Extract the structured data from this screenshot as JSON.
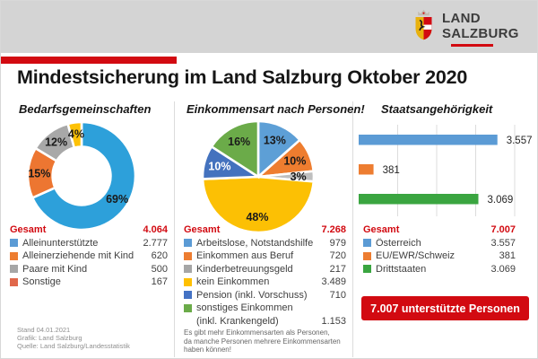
{
  "page": {
    "title": "Mindestsicherung im Land Salzburg Oktober 2020"
  },
  "header": {
    "logo_line1": "LAND",
    "logo_line2": "SALZBURG"
  },
  "theme": {
    "accent_red": "#d20a11",
    "header_bg": "#d4d4d4",
    "divider": "#dcdcdc"
  },
  "columns": [
    {
      "heading": "Bedarfsgemeinschaften",
      "legend": {
        "total_label": "Gesamt",
        "total_value": "4.064",
        "rows": [
          {
            "color": "#5b9bd5",
            "label": "Alleinunterstützte",
            "value": "2.777"
          },
          {
            "color": "#ed7d31",
            "label": "Alleinerziehende mit Kind",
            "value": "620"
          },
          {
            "color": "#a6a6a6",
            "label": "Paare mit Kind",
            "value": "500"
          },
          {
            "color": "#e0684b",
            "label": "Sonstige",
            "value": "167"
          }
        ]
      }
    },
    {
      "heading": "Einkommensart nach Personen!",
      "legend": {
        "total_label": "Gesamt",
        "total_value": "7.268",
        "rows": [
          {
            "color": "#5b9bd5",
            "label": "Arbeitslose, Notstandshilfe",
            "value": "979"
          },
          {
            "color": "#ed7d31",
            "label": "Einkommen aus Beruf",
            "value": "720"
          },
          {
            "color": "#a6a6a6",
            "label": "Kinderbetreuungsgeld",
            "value": "217"
          },
          {
            "color": "#ffc000",
            "label": "kein Einkommen",
            "value": "3.489"
          },
          {
            "color": "#4472c4",
            "label": "Pension (inkl. Vorschuss)",
            "value": "710"
          },
          {
            "color": "#6bab49",
            "label": "sonstiges Einkommen",
            "label2": "(inkl. Krankengeld)",
            "value": "1.153"
          }
        ]
      },
      "footnote": [
        "Es gibt mehr Einkommensarten als Personen,",
        "da manche Personen mehrere Einkommensarten",
        "haben können!"
      ]
    },
    {
      "heading": "Staatsangehörigkeit",
      "legend": {
        "total_label": "Gesamt",
        "total_value": "7.007",
        "rows": [
          {
            "color": "#5b9bd5",
            "label": "Österreich",
            "value": "3.557"
          },
          {
            "color": "#ed7d31",
            "label": "EU/EWR/Schweiz",
            "value": "381"
          },
          {
            "color": "#3aa540",
            "label": "Drittstaaten",
            "value": "3.069"
          }
        ]
      },
      "badge": "7.007 unterstützte Personen"
    }
  ],
  "chart_data": [
    {
      "type": "pie",
      "subtype": "donut",
      "title": "Bedarfsgemeinschaften",
      "labels": [
        "Alleinunterstützte",
        "Alleinerziehende mit Kind",
        "Paare mit Kind",
        "Sonstige"
      ],
      "values": [
        2777,
        620,
        500,
        167
      ],
      "percent_labels": [
        "69%",
        "15%",
        "12%",
        "4%"
      ],
      "colors": [
        "#2da0da",
        "#ed7631",
        "#a8a8a8",
        "#fdc105"
      ],
      "label_colors": [
        "#1a1a1a",
        "#1a1a1a",
        "#1a1a1a",
        "#1a1a1a"
      ],
      "total": 4064,
      "start_angle_deg": 0,
      "clockwise": true,
      "legend_position": "bottom"
    },
    {
      "type": "pie",
      "title": "Einkommensart nach Personen!",
      "labels": [
        "Arbeitslose, Notstandshilfe",
        "Einkommen aus Beruf",
        "Kinderbetreuungsgeld",
        "kein Einkommen",
        "Pension (inkl. Vorschuss)",
        "sonstiges Einkommen (inkl. Krankengeld)"
      ],
      "values": [
        979,
        720,
        217,
        3489,
        710,
        1153
      ],
      "percent_labels": [
        "13%",
        "10%",
        "3%",
        "48%",
        "10%",
        "16%"
      ],
      "colors": [
        "#5d9fd6",
        "#ee7d2f",
        "#bfbfbf",
        "#fcc004",
        "#4472be",
        "#6bab49"
      ],
      "label_colors": [
        "#1a1a1a",
        "#1a1a1a",
        "#1a1a1a",
        "#1a1a1a",
        "#ffffff",
        "#1a1a1a"
      ],
      "total": 7268,
      "start_angle_deg": 0,
      "clockwise": true,
      "legend_position": "bottom"
    },
    {
      "type": "bar",
      "orientation": "horizontal",
      "title": "Staatsangehörigkeit",
      "categories": [
        "Österreich",
        "EU/EWR/Schweiz",
        "Drittstaaten"
      ],
      "values": [
        3557,
        381,
        3069
      ],
      "value_labels": [
        "3.557",
        "381",
        "3.069"
      ],
      "colors": [
        "#5b9bd5",
        "#ed7d31",
        "#3aa540"
      ],
      "xlim": [
        0,
        4000
      ],
      "gridline_step": 1000,
      "grid": true,
      "total": 7007
    }
  ],
  "footer": [
    "Stand 04.01.2021",
    "Grafik: Land Salzburg",
    "Quelle: Land Salzburg/Landesstatistik"
  ]
}
